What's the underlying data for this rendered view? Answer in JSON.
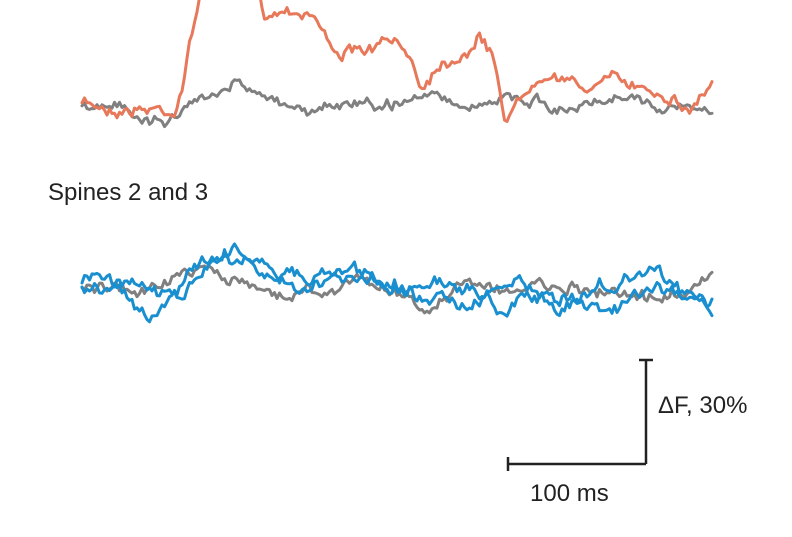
{
  "panel_label": "Spines 2 and 3",
  "scale_bar": {
    "y_label": "ΔF, 30%",
    "x_label": "100 ms"
  }
}
